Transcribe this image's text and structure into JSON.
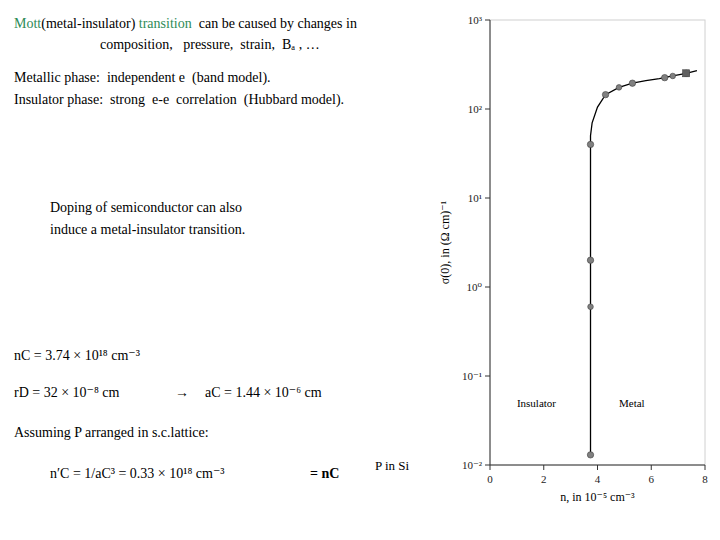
{
  "chart_data": {
    "type": "line",
    "log": "y",
    "grid": false,
    "xlim": [
      0,
      8
    ],
    "ylim": [
      0.01,
      1000
    ],
    "xticks": [
      0,
      2,
      4,
      6,
      8
    ],
    "yticks": [
      {
        "value": 0.01,
        "label": "10⁻²"
      },
      {
        "value": 0.1,
        "label": "10⁻¹"
      },
      {
        "value": 1,
        "label": "10⁰"
      },
      {
        "value": 10,
        "label": "10¹"
      },
      {
        "value": 100,
        "label": "10²"
      },
      {
        "value": 1000,
        "label": "10³"
      }
    ],
    "x_label": "n, in 10⁻⁵ cm⁻³",
    "y_label": "σ(0), in (Ω cm)⁻¹",
    "series": [
      {
        "type": "line",
        "color": "#000000",
        "line_style": "solid",
        "x": [
          3.74,
          3.74,
          3.74,
          3.74,
          3.74,
          3.8,
          4.0,
          4.3,
          4.8,
          5.3,
          5.8,
          6.3,
          6.8,
          7.3,
          7.7
        ],
        "values": [
          0.013,
          0.6,
          2.0,
          40.0,
          50.0,
          70.0,
          105.0,
          145.0,
          175.0,
          195.0,
          208.0,
          220.0,
          235.0,
          252.0,
          270.0
        ]
      },
      {
        "type": "scatter",
        "color": "#808080",
        "marker": "circle",
        "x": [
          3.74,
          3.74,
          3.74,
          4.3,
          5.3,
          6.5,
          7.3
        ],
        "values": [
          0.013,
          2.0,
          40.0,
          145.0,
          195.0,
          225.0,
          252.0
        ]
      },
      {
        "type": "scatter",
        "color": "#808080",
        "marker": "circle",
        "x": [
          3.74,
          4.8,
          6.8
        ],
        "values": [
          0.6,
          175.0,
          235.0
        ]
      },
      {
        "type": "scatter",
        "color": "#606060",
        "marker": "square",
        "x": [
          7.3
        ],
        "values": [
          252.0
        ]
      }
    ],
    "annotations": [
      {
        "text": "Mott",
        "color": "#2e8b57"
      },
      {
        "text": "(metal-insulator) "
      },
      {
        "text": "transition",
        "color": "#2e8b57"
      },
      {
        "text": "  can be caused by changes in"
      },
      {
        "text": "composition,   pressure,  strain,  Bₐ , …"
      },
      {
        "text": "Metallic phase:  independent e  (band model)."
      },
      {
        "text": "Insulator phase:  strong  e-e  correlation  (Hubbard model)."
      },
      {
        "text": "Doping of semiconductor can also"
      },
      {
        "text": "induce a metal-insulator transition."
      },
      {
        "text": "nC = 3.74 × 10¹⁸ cm⁻³"
      },
      {
        "text": "rD = 32 × 10⁻⁸ cm"
      },
      {
        "text": "→"
      },
      {
        "text": "aC = 1.44 × 10⁻⁶ cm"
      },
      {
        "text": "Assuming P arranged in s.c.lattice:"
      },
      {
        "text": "P in Si"
      },
      {
        "text": "n′C = 1/aC³ = 0.33 × 10¹⁸ cm⁻³"
      },
      {
        "text": "= nC"
      },
      {
        "text": "Insulator"
      },
      {
        "text": "Metal"
      }
    ]
  }
}
